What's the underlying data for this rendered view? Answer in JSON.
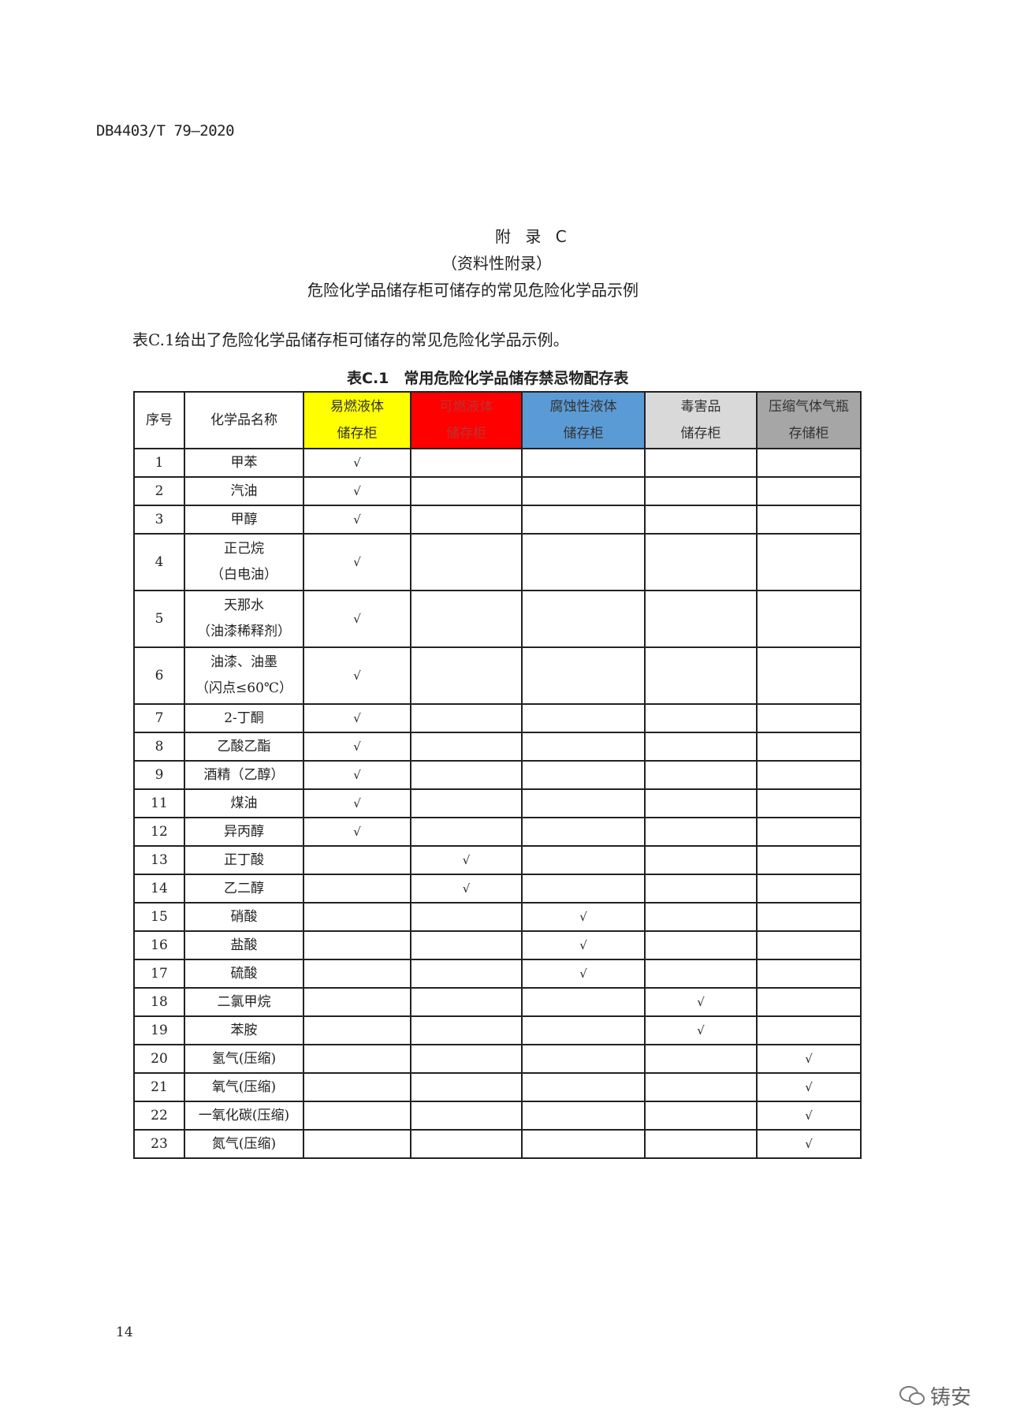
{
  "doc_code": "DB4403/T 79—2020",
  "appendix": {
    "title": "附 录 C",
    "subtitle": "（资料性附录）",
    "heading": "危险化学品储存柜可储存的常见危险化学品示例"
  },
  "intro": "表C.1给出了危险化学品储存柜可储存的常见危险化学品示例。",
  "table": {
    "caption": "表C.1　常用危险化学品储存禁忌物配存表",
    "headers": [
      {
        "line1": "序号",
        "line2": "",
        "bg": "#ffffff",
        "color": "#222222"
      },
      {
        "line1": "化学品名称",
        "line2": "",
        "bg": "#ffffff",
        "color": "#222222"
      },
      {
        "line1": "易燃液体",
        "line2": "储存柜",
        "bg": "#ffff00",
        "color": "#333333"
      },
      {
        "line1": "可燃液体",
        "line2": "储存柜",
        "bg": "#ff0000",
        "color": "#bb3333"
      },
      {
        "line1": "腐蚀性液体",
        "line2": "储存柜",
        "bg": "#5b9bd5",
        "color": "#333333"
      },
      {
        "line1": "毒害品",
        "line2": "储存柜",
        "bg": "#d9d9d9",
        "color": "#333333"
      },
      {
        "line1": "压缩气体气瓶",
        "line2": "存储柜",
        "bg": "#a6a6a6",
        "color": "#333333"
      }
    ],
    "check_mark": "√",
    "rows": [
      {
        "no": "1",
        "name": [
          "甲苯"
        ],
        "col": 0
      },
      {
        "no": "2",
        "name": [
          "汽油"
        ],
        "col": 0
      },
      {
        "no": "3",
        "name": [
          "甲醇"
        ],
        "col": 0
      },
      {
        "no": "4",
        "name": [
          "正己烷",
          "（白电油）"
        ],
        "col": 0
      },
      {
        "no": "5",
        "name": [
          "天那水",
          "（油漆稀释剂）"
        ],
        "col": 0
      },
      {
        "no": "6",
        "name": [
          "油漆、油墨",
          "（闪点≤60℃）"
        ],
        "col": 0
      },
      {
        "no": "7",
        "name": [
          "2-丁酮"
        ],
        "col": 0
      },
      {
        "no": "8",
        "name": [
          "乙酸乙酯"
        ],
        "col": 0
      },
      {
        "no": "9",
        "name": [
          "酒精（乙醇）"
        ],
        "col": 0
      },
      {
        "no": "11",
        "name": [
          "煤油"
        ],
        "col": 0
      },
      {
        "no": "12",
        "name": [
          "异丙醇"
        ],
        "col": 0
      },
      {
        "no": "13",
        "name": [
          "正丁酸"
        ],
        "col": 1
      },
      {
        "no": "14",
        "name": [
          "乙二醇"
        ],
        "col": 1
      },
      {
        "no": "15",
        "name": [
          "硝酸"
        ],
        "col": 2
      },
      {
        "no": "16",
        "name": [
          "盐酸"
        ],
        "col": 2
      },
      {
        "no": "17",
        "name": [
          "硫酸"
        ],
        "col": 2
      },
      {
        "no": "18",
        "name": [
          "二氯甲烷"
        ],
        "col": 3
      },
      {
        "no": "19",
        "name": [
          "苯胺"
        ],
        "col": 3
      },
      {
        "no": "20",
        "name": [
          "氢气(压缩)"
        ],
        "col": 4
      },
      {
        "no": "21",
        "name": [
          "氧气(压缩)"
        ],
        "col": 4
      },
      {
        "no": "22",
        "name": [
          "一氧化碳(压缩)"
        ],
        "col": 4
      },
      {
        "no": "23",
        "name": [
          "氮气(压缩)"
        ],
        "col": 4
      }
    ]
  },
  "page_number": "14",
  "watermark": "铸安"
}
